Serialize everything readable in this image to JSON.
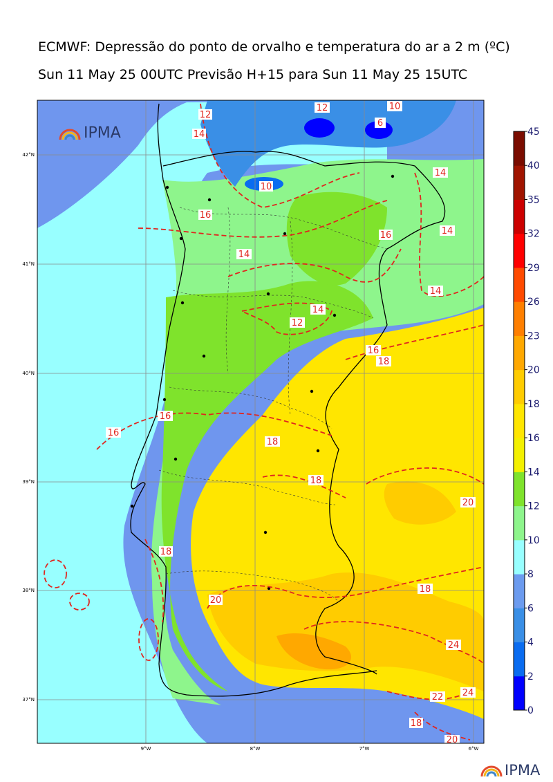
{
  "title": "ECMWF: Depressão do ponto de orvalho e temperatura do ar a 2 m (ºC)",
  "subtitle": "Sun 11 May 25 00UTC Previsão H+15 para Sun 11 May 25 15UTC",
  "lat_labels": [
    "42°N",
    "41°N",
    "40°N",
    "39°N",
    "38°N",
    "37°N"
  ],
  "lon_labels": [
    "9°W",
    "8°W",
    "7°W",
    "6°W"
  ],
  "colorbar": {
    "labels": [
      "0",
      "2",
      "4",
      "6",
      "8",
      "10",
      "12",
      "14",
      "16",
      "18",
      "20",
      "23",
      "26",
      "29",
      "32",
      "35",
      "40",
      "45"
    ],
    "colors": [
      "#0000ff",
      "#0a6cf0",
      "#3a8fe6",
      "#6c9bef",
      "#98ffff",
      "#8ef58c",
      "#7fe32c",
      "#f3f000",
      "#ffe600",
      "#ffcc00",
      "#ffa800",
      "#ff7f00",
      "#ff4a00",
      "#ff0000",
      "#cc0000",
      "#a01400",
      "#7a0c00"
    ]
  },
  "contour_labels": [
    "12",
    "10",
    "6",
    "12",
    "14",
    "14",
    "10",
    "16",
    "14",
    "16",
    "14",
    "14",
    "12",
    "14",
    "16",
    "18",
    "16",
    "16",
    "18",
    "18",
    "20",
    "18",
    "18",
    "20",
    "24",
    "24",
    "22",
    "18",
    "20"
  ],
  "logos": {
    "top": "IPMA",
    "bottom": "IPMA"
  }
}
